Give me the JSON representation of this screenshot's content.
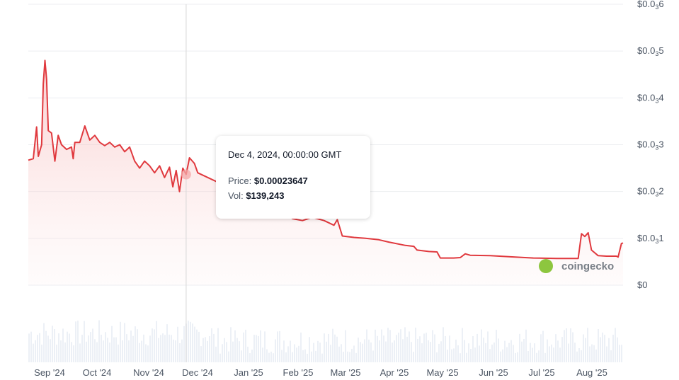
{
  "chart_data": {
    "type": "area",
    "series": [
      {
        "values": []
      }
    ],
    "x_labels": [
      "Sep '24",
      "Oct '24",
      "Nov '24",
      "Dec '24",
      "Jan '25",
      "Feb '25",
      "Mar '25",
      "Apr '25",
      "May '25",
      "Jun '25",
      "Jul '25",
      "Aug '25"
    ],
    "y_ticks": [
      {
        "prefix": "$0.0",
        "sub": "3",
        "digit": "6",
        "value": 0.0006
      },
      {
        "prefix": "$0.0",
        "sub": "3",
        "digit": "5",
        "value": 0.0005
      },
      {
        "prefix": "$0.0",
        "sub": "3",
        "digit": "4",
        "value": 0.0004
      },
      {
        "prefix": "$0.0",
        "sub": "3",
        "digit": "3",
        "value": 0.0003
      },
      {
        "prefix": "$0.0",
        "sub": "3",
        "digit": "2",
        "value": 0.0002
      },
      {
        "prefix": "$0.0",
        "sub": "3",
        "digit": "1",
        "value": 0.0001
      },
      {
        "prefix": "$0",
        "sub": "",
        "digit": "",
        "value": 0
      }
    ],
    "ylim": [
      0,
      0.0006
    ],
    "price_points": [
      [
        "2024-08-31",
        0.000267
      ],
      [
        "2024-09-03",
        0.00027
      ],
      [
        "2024-09-05",
        0.000338
      ],
      [
        "2024-09-06",
        0.000275
      ],
      [
        "2024-09-08",
        0.0003
      ],
      [
        "2024-09-09",
        0.00043
      ],
      [
        "2024-09-10",
        0.00048
      ],
      [
        "2024-09-11",
        0.00044
      ],
      [
        "2024-09-12",
        0.00033
      ],
      [
        "2024-09-14",
        0.000325
      ],
      [
        "2024-09-16",
        0.000265
      ],
      [
        "2024-09-18",
        0.00032
      ],
      [
        "2024-09-20",
        0.0003
      ],
      [
        "2024-09-23",
        0.00029
      ],
      [
        "2024-09-26",
        0.000295
      ],
      [
        "2024-09-27",
        0.00027
      ],
      [
        "2024-09-28",
        0.000305
      ],
      [
        "2024-10-01",
        0.000305
      ],
      [
        "2024-10-04",
        0.00034
      ],
      [
        "2024-10-07",
        0.00031
      ],
      [
        "2024-10-10",
        0.00032
      ],
      [
        "2024-10-13",
        0.000305
      ],
      [
        "2024-10-16",
        0.000298
      ],
      [
        "2024-10-19",
        0.000305
      ],
      [
        "2024-10-22",
        0.000295
      ],
      [
        "2024-10-25",
        0.0003
      ],
      [
        "2024-10-28",
        0.000285
      ],
      [
        "2024-10-31",
        0.000295
      ],
      [
        "2024-11-03",
        0.000265
      ],
      [
        "2024-11-06",
        0.00025
      ],
      [
        "2024-11-09",
        0.000265
      ],
      [
        "2024-11-12",
        0.000255
      ],
      [
        "2024-11-15",
        0.00024
      ],
      [
        "2024-11-18",
        0.000255
      ],
      [
        "2024-11-21",
        0.00023
      ],
      [
        "2024-11-24",
        0.000252
      ],
      [
        "2024-11-26",
        0.00021
      ],
      [
        "2024-11-28",
        0.000245
      ],
      [
        "2024-11-30",
        0.0002
      ],
      [
        "2024-12-02",
        0.00025
      ],
      [
        "2024-12-04",
        0.00023647
      ],
      [
        "2024-12-06",
        0.000272
      ],
      [
        "2024-12-09",
        0.00026
      ],
      [
        "2024-12-11",
        0.00024
      ],
      [
        "2025-01-01",
        0.000205
      ],
      [
        "2025-01-15",
        0.00018
      ],
      [
        "2025-01-30",
        0.00016
      ],
      [
        "2025-02-06",
        0.000142
      ],
      [
        "2025-02-12",
        0.000138
      ],
      [
        "2025-02-18",
        0.000145
      ],
      [
        "2025-02-25",
        0.000138
      ],
      [
        "2025-03-03",
        0.000128
      ],
      [
        "2025-03-05",
        0.00014
      ],
      [
        "2025-03-08",
        0.000105
      ],
      [
        "2025-03-15",
        0.000102
      ],
      [
        "2025-03-22",
        0.0001
      ],
      [
        "2025-03-30",
        9.7e-05
      ],
      [
        "2025-04-05",
        9.2e-05
      ],
      [
        "2025-04-15",
        8.5e-05
      ],
      [
        "2025-04-20",
        8.3e-05
      ],
      [
        "2025-04-22",
        7.5e-05
      ],
      [
        "2025-04-29",
        7.2e-05
      ],
      [
        "2025-05-04",
        7.1e-05
      ],
      [
        "2025-05-06",
        5.8e-05
      ],
      [
        "2025-05-14",
        5.8e-05
      ],
      [
        "2025-05-18",
        5.9e-05
      ],
      [
        "2025-05-21",
        6.7e-05
      ],
      [
        "2025-05-24",
        6.4e-05
      ],
      [
        "2025-06-05",
        6.3e-05
      ],
      [
        "2025-06-20",
        6e-05
      ],
      [
        "2025-07-01",
        5.8e-05
      ],
      [
        "2025-07-15",
        5.7e-05
      ],
      [
        "2025-07-28",
        5.7e-05
      ],
      [
        "2025-07-30",
        0.00011
      ],
      [
        "2025-08-01",
        0.000104
      ],
      [
        "2025-08-03",
        0.000112
      ],
      [
        "2025-08-05",
        7.5e-05
      ],
      [
        "2025-08-09",
        6.3e-05
      ],
      [
        "2025-08-14",
        6.2e-05
      ],
      [
        "2025-08-20",
        6.2e-05
      ],
      [
        "2025-08-21",
        6e-05
      ],
      [
        "2025-08-23",
        8.9e-05
      ],
      [
        "2025-08-24",
        9e-05
      ]
    ],
    "colors": {
      "line": "#e0393e",
      "fill": "#f3b9b9",
      "grid": "#eceef1",
      "crosshair": "#d6d6d6",
      "volume": "#e7ecf4"
    }
  },
  "tooltip": {
    "date": "Dec 4, 2024, 00:00:00 GMT",
    "price_label": "Price:",
    "price_value": "$0.00023647",
    "vol_label": "Vol:",
    "vol_value": "$139,243"
  },
  "branding": {
    "logo_text": "coingecko"
  }
}
